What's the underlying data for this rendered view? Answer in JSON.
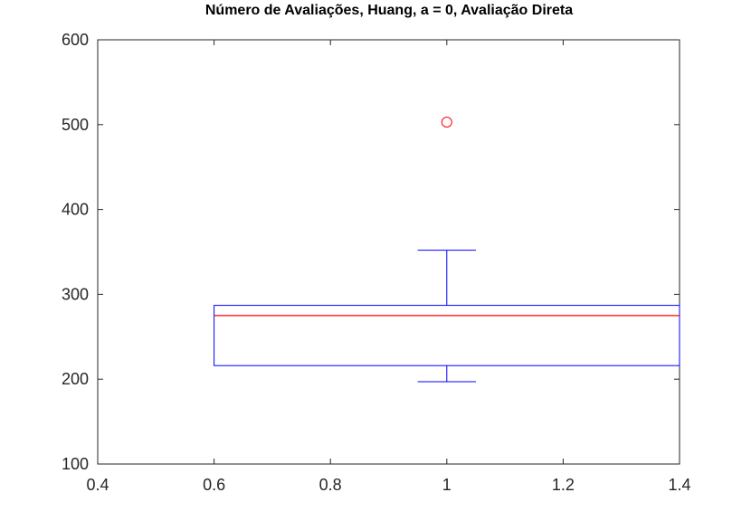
{
  "chart_data": {
    "type": "boxplot",
    "title": "Número de Avaliações, Huang, a = 0, Avaliação Direta",
    "xlabel": "",
    "ylabel": "",
    "xlim": [
      0.4,
      1.4
    ],
    "ylim": [
      100,
      600
    ],
    "xticks": [
      0.4,
      0.6,
      0.8,
      1,
      1.2,
      1.4
    ],
    "xtick_labels": [
      "0.4",
      "0.6",
      "0.8",
      "1",
      "1.2",
      "1.4"
    ],
    "yticks": [
      100,
      200,
      300,
      400,
      500,
      600
    ],
    "ytick_labels": [
      "100",
      "200",
      "300",
      "400",
      "500",
      "600"
    ],
    "grid": false,
    "box": {
      "position": 1,
      "box_left": 0.6,
      "box_right": 1.4,
      "cap_left": 0.95,
      "cap_right": 1.05,
      "whisker_low": 197,
      "q1": 216,
      "median": 275,
      "q3": 287,
      "whisker_high": 352,
      "outliers": [
        503
      ]
    },
    "colors": {
      "box": "#0000ff",
      "median": "#ff0000",
      "outlier": "#ff0000",
      "axes": "#262626"
    }
  }
}
